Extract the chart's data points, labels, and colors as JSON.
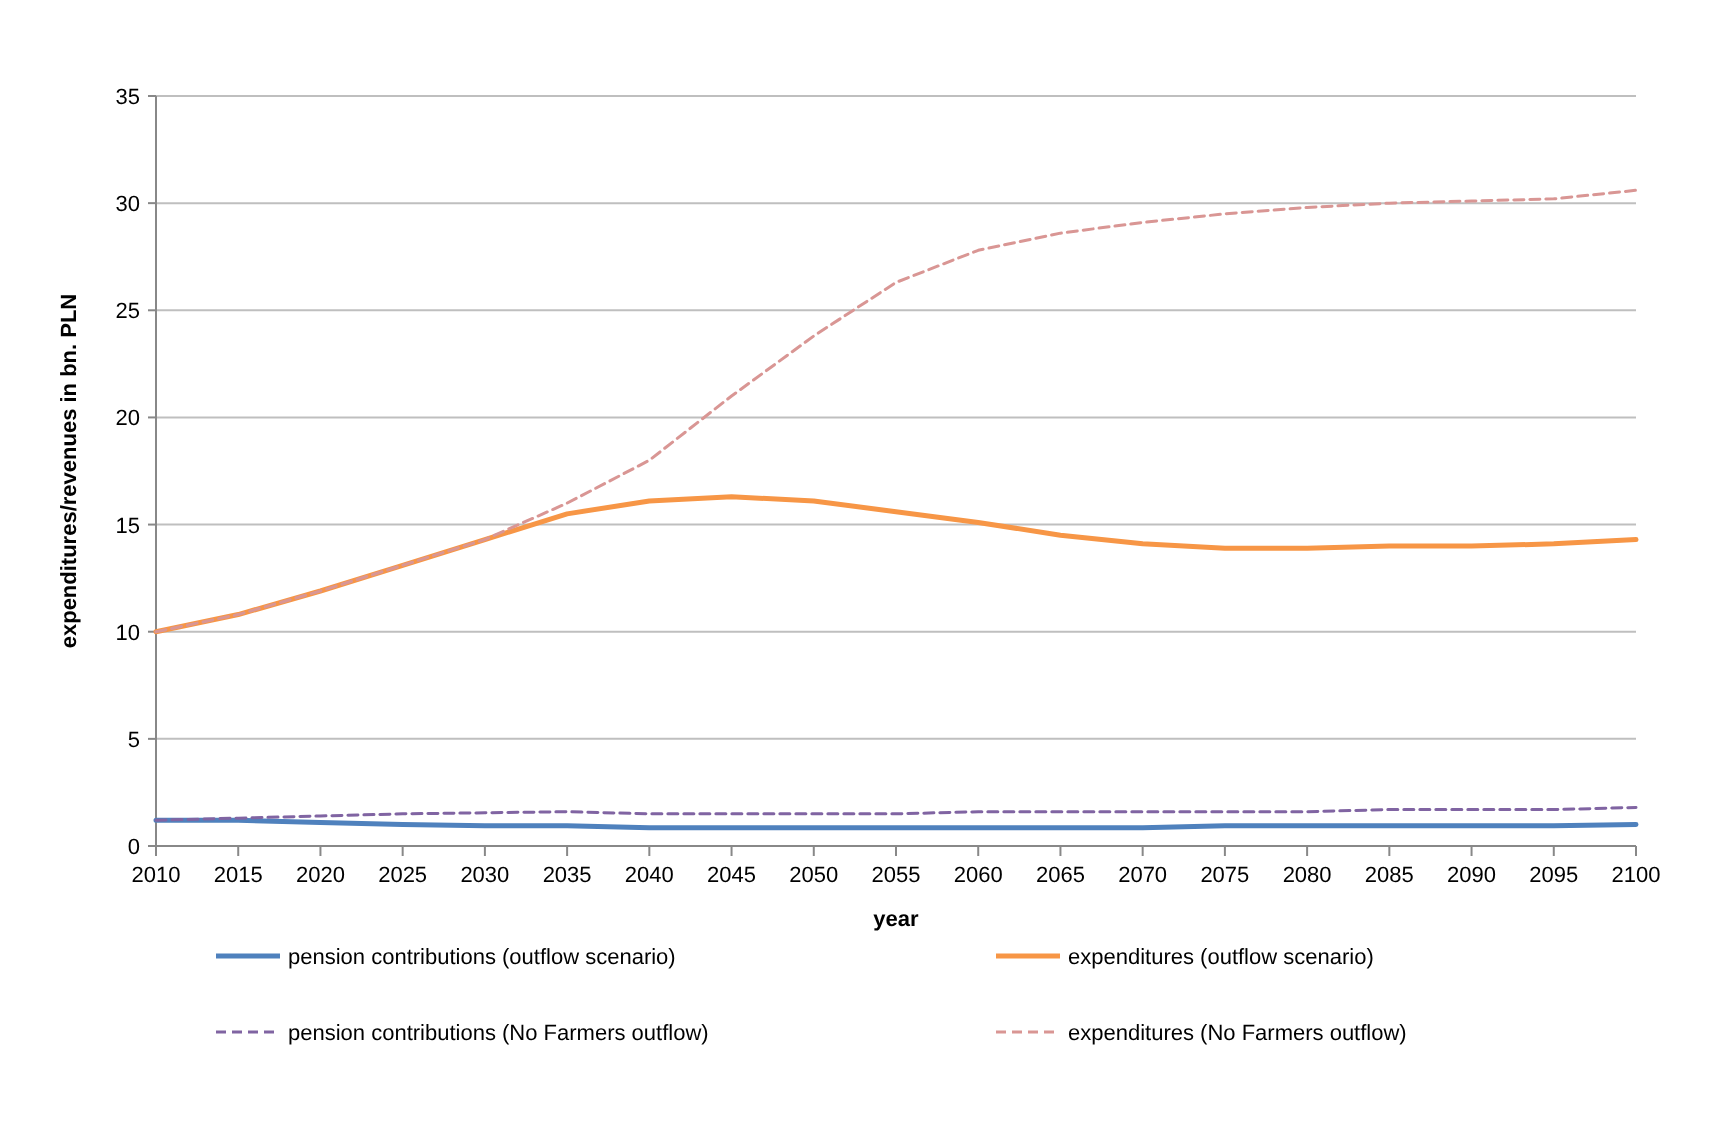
{
  "chart_data": {
    "type": "line",
    "xlabel": "year",
    "ylabel": "expenditures/revenues in bn. PLN",
    "x": [
      2010,
      2015,
      2020,
      2025,
      2030,
      2035,
      2040,
      2045,
      2050,
      2055,
      2060,
      2065,
      2070,
      2075,
      2080,
      2085,
      2090,
      2095,
      2100
    ],
    "xlim": [
      2010,
      2100
    ],
    "xticks": [
      2010,
      2015,
      2020,
      2025,
      2030,
      2035,
      2040,
      2045,
      2050,
      2055,
      2060,
      2065,
      2070,
      2075,
      2080,
      2085,
      2090,
      2095,
      2100
    ],
    "ylim": [
      0,
      35
    ],
    "yticks": [
      0,
      5,
      10,
      15,
      20,
      25,
      30,
      35
    ],
    "grid": "y",
    "legend": "bottom",
    "series": [
      {
        "name": "pension contributions (outflow scenario)",
        "color": "#4f81bd",
        "line_style": "solid",
        "values": [
          1.2,
          1.2,
          1.1,
          1.0,
          0.95,
          0.95,
          0.85,
          0.85,
          0.85,
          0.85,
          0.85,
          0.85,
          0.85,
          0.95,
          0.95,
          0.95,
          0.95,
          0.95,
          1.0
        ]
      },
      {
        "name": "expenditures (outflow scenario)",
        "color": "#f79646",
        "line_style": "solid",
        "values": [
          10,
          10.8,
          11.9,
          13.1,
          14.3,
          15.5,
          16.1,
          16.3,
          16.1,
          15.6,
          15.1,
          14.5,
          14.1,
          13.9,
          13.9,
          14.0,
          14.0,
          14.1,
          14.3
        ]
      },
      {
        "name": "pension contributions (No Farmers outflow)",
        "color": "#8064a2",
        "line_style": "dashed",
        "values": [
          1.2,
          1.3,
          1.4,
          1.5,
          1.55,
          1.6,
          1.5,
          1.5,
          1.5,
          1.5,
          1.6,
          1.6,
          1.6,
          1.6,
          1.6,
          1.7,
          1.7,
          1.7,
          1.8
        ]
      },
      {
        "name": "expenditures (No Farmers outflow)",
        "color": "#d99694",
        "line_style": "dashed",
        "values": [
          10,
          10.8,
          11.9,
          13.1,
          14.3,
          16.0,
          18.0,
          21.0,
          23.8,
          26.3,
          27.8,
          28.6,
          29.1,
          29.5,
          29.8,
          30.0,
          30.1,
          30.2,
          30.6
        ]
      }
    ]
  }
}
